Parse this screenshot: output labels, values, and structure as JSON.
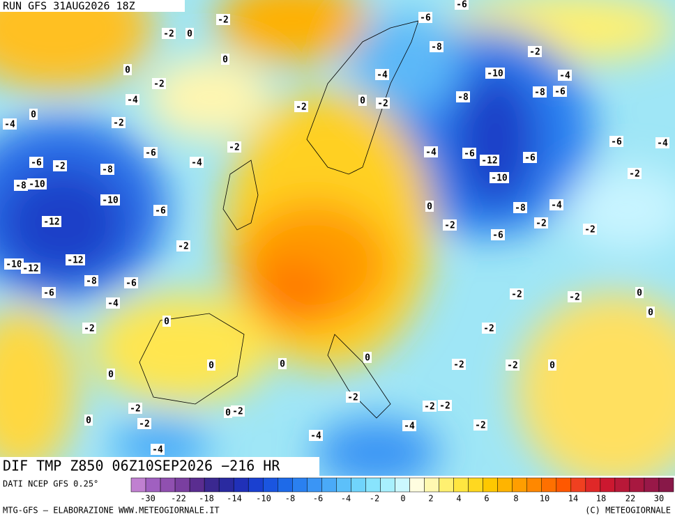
{
  "header": {
    "run": "RUN GFS 31AUG2026 18Z"
  },
  "map": {
    "contour_labels": [
      -6,
      -2,
      -2,
      0,
      -6,
      0,
      -8,
      -2,
      0,
      -4,
      -10,
      -4,
      -2,
      -8,
      -6,
      -4,
      0,
      -2,
      -8,
      -2,
      0,
      -2,
      -4,
      -6,
      -4,
      -2,
      -6,
      -4,
      -6,
      -12,
      -6,
      -6,
      -2,
      -4,
      -8,
      -2,
      -10,
      -8,
      -10,
      -10,
      -8,
      -4,
      0,
      -6,
      -12,
      -2,
      -2,
      -2,
      -6,
      -2,
      -10,
      -12,
      -12,
      -8,
      -6,
      -6,
      -4,
      -2,
      -2,
      0,
      0,
      0,
      -2,
      -2,
      0,
      0,
      0,
      -2,
      -2,
      0,
      0,
      -2,
      -2,
      -2,
      -2,
      0,
      -2,
      0,
      -2,
      -4,
      -2,
      -4,
      -4
    ]
  },
  "footer": {
    "title": "DIF TMP Z850 06Z10SEP2026 −216 HR",
    "source": "DATI NCEP GFS 0.25°",
    "credit": "MTG-GFS — ELABORAZIONE WWW.METEOGIORNALE.IT",
    "copyright": "(C) METEOGIORNALE"
  },
  "legend": {
    "colors": [
      "#c080d0",
      "#a060c0",
      "#9050b0",
      "#7a3fa0",
      "#5a2d90",
      "#3a2890",
      "#2a2aa0",
      "#2030b8",
      "#1a40d0",
      "#1a55e0",
      "#1e6ae8",
      "#2a80f0",
      "#3a95f5",
      "#4aaaf8",
      "#5cc0fa",
      "#70d4fc",
      "#88e4fd",
      "#a8f0fe",
      "#cbf8ff",
      "#fffde0",
      "#fff8b0",
      "#fff070",
      "#ffe640",
      "#ffd820",
      "#ffc800",
      "#ffb400",
      "#ff9e00",
      "#ff8800",
      "#ff7000",
      "#ff5800",
      "#f04020",
      "#e02828",
      "#cc1830",
      "#b81838",
      "#a81840",
      "#981848",
      "#881848"
    ],
    "ticks": [
      -30,
      -22,
      -18,
      -14,
      -10,
      -8,
      -6,
      -4,
      -2,
      0,
      2,
      4,
      6,
      8,
      10,
      14,
      18,
      22,
      30
    ]
  }
}
